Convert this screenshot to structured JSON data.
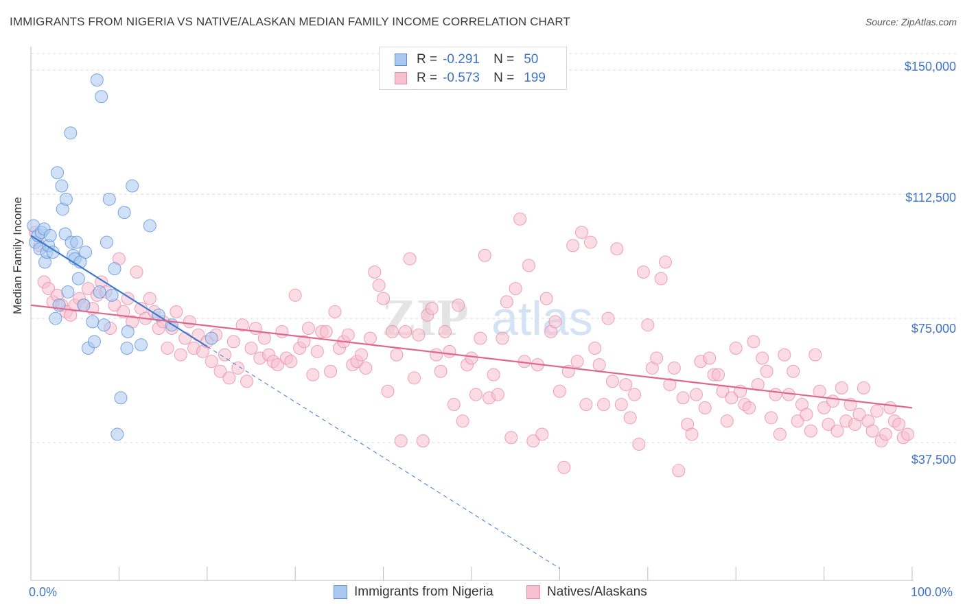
{
  "title": "IMMIGRANTS FROM NIGERIA VS NATIVE/ALASKAN MEDIAN FAMILY INCOME CORRELATION CHART",
  "source": "Source: ZipAtlas.com",
  "watermark": {
    "zip": "ZIP",
    "atlas": "atlas"
  },
  "stats": {
    "r_label": "R =",
    "n_label": "N =",
    "rows": [
      {
        "r": "-0.291",
        "n": "50",
        "color": "#a9c8f0",
        "border": "#5b8fd6"
      },
      {
        "r": "-0.573",
        "n": "199",
        "color": "#f7bfd0",
        "border": "#e88aa8"
      }
    ]
  },
  "legend": {
    "items": [
      {
        "label": "Immigrants from Nigeria",
        "color": "#a9c8f0",
        "border": "#5b8fd6"
      },
      {
        "label": "Natives/Alaskans",
        "color": "#f7bfd0",
        "border": "#e88aa8"
      }
    ]
  },
  "axes": {
    "ylabel": "Median Family Income",
    "x_left": "0.0%",
    "x_right": "100.0%",
    "y_ticks": [
      {
        "label": "$150,000",
        "value": 150000
      },
      {
        "label": "$112,500",
        "value": 112500
      },
      {
        "label": "$75,000",
        "value": 75000
      },
      {
        "label": "$37,500",
        "value": 37500
      }
    ]
  },
  "chart_data": {
    "type": "scatter",
    "xlim": [
      0,
      100
    ],
    "ylim": [
      0,
      155000
    ],
    "grid": "horizontal dashed",
    "series": [
      {
        "name": "Immigrants from Nigeria",
        "color": "#a9c8f0",
        "stroke": "#5b8fd6",
        "trend": {
          "x0": 0,
          "y0": 100000,
          "x1": 20,
          "y1": 66500,
          "extend_dashed_to_x": 60
        },
        "points": [
          [
            0.3,
            103000
          ],
          [
            0.5,
            98000
          ],
          [
            0.8,
            100000
          ],
          [
            1.0,
            96000
          ],
          [
            1.2,
            101000
          ],
          [
            1.5,
            102000
          ],
          [
            1.6,
            92000
          ],
          [
            1.8,
            95000
          ],
          [
            2.0,
            97000
          ],
          [
            2.2,
            100000
          ],
          [
            2.5,
            95000
          ],
          [
            2.8,
            75000
          ],
          [
            3.0,
            119000
          ],
          [
            3.2,
            79000
          ],
          [
            3.5,
            115000
          ],
          [
            3.6,
            108000
          ],
          [
            3.9,
            100500
          ],
          [
            4.0,
            111000
          ],
          [
            4.2,
            83000
          ],
          [
            4.5,
            131000
          ],
          [
            4.6,
            98000
          ],
          [
            4.8,
            94000
          ],
          [
            5.0,
            93000
          ],
          [
            5.2,
            98000
          ],
          [
            5.4,
            87000
          ],
          [
            5.6,
            92000
          ],
          [
            6.0,
            79000
          ],
          [
            6.2,
            95000
          ],
          [
            6.5,
            66000
          ],
          [
            7.0,
            74000
          ],
          [
            7.2,
            68000
          ],
          [
            7.5,
            147000
          ],
          [
            7.8,
            83000
          ],
          [
            8.0,
            142000
          ],
          [
            8.3,
            73000
          ],
          [
            8.6,
            98000
          ],
          [
            8.9,
            111000
          ],
          [
            9.2,
            82000
          ],
          [
            9.5,
            90000
          ],
          [
            9.8,
            40000
          ],
          [
            10.2,
            51000
          ],
          [
            10.6,
            107000
          ],
          [
            10.9,
            66000
          ],
          [
            11.0,
            71000
          ],
          [
            11.5,
            115000
          ],
          [
            12.5,
            67000
          ],
          [
            13.5,
            103000
          ],
          [
            14.5,
            76000
          ],
          [
            16.0,
            73000
          ],
          [
            20.5,
            69000
          ]
        ]
      },
      {
        "name": "Natives/Alaskans",
        "color": "#f7bfd0",
        "stroke": "#e88aa8",
        "trend": {
          "x0": 0,
          "y0": 79000,
          "x1": 100,
          "y1": 48000
        },
        "points": [
          [
            0.5,
            101000
          ],
          [
            1.0,
            97000
          ],
          [
            1.5,
            86000
          ],
          [
            2.0,
            84000
          ],
          [
            2.5,
            80000
          ],
          [
            3.0,
            82000
          ],
          [
            3.5,
            79000
          ],
          [
            4.0,
            77000
          ],
          [
            4.5,
            76000
          ],
          [
            5.0,
            79000
          ],
          [
            5.5,
            81000
          ],
          [
            6.0,
            79000
          ],
          [
            6.5,
            84000
          ],
          [
            7.0,
            78000
          ],
          [
            7.5,
            82000
          ],
          [
            8.0,
            86000
          ],
          [
            8.5,
            83000
          ],
          [
            9.0,
            72000
          ],
          [
            9.5,
            79000
          ],
          [
            10.0,
            93000
          ],
          [
            10.5,
            77000
          ],
          [
            11.0,
            81000
          ],
          [
            11.5,
            74000
          ],
          [
            12.0,
            89000
          ],
          [
            12.5,
            78000
          ],
          [
            13.0,
            75000
          ],
          [
            13.5,
            81000
          ],
          [
            14.0,
            77000
          ],
          [
            14.5,
            72000
          ],
          [
            15.0,
            74000
          ],
          [
            15.5,
            66000
          ],
          [
            16.0,
            72000
          ],
          [
            16.5,
            77000
          ],
          [
            17.0,
            64000
          ],
          [
            17.5,
            69000
          ],
          [
            18.0,
            74000
          ],
          [
            18.5,
            66000
          ],
          [
            19.0,
            70000
          ],
          [
            19.5,
            65000
          ],
          [
            20.0,
            68000
          ],
          [
            20.5,
            62000
          ],
          [
            21.0,
            70000
          ],
          [
            21.5,
            59000
          ],
          [
            22.0,
            64000
          ],
          [
            22.5,
            57000
          ],
          [
            23.0,
            68000
          ],
          [
            23.5,
            60000
          ],
          [
            24.0,
            73000
          ],
          [
            24.5,
            56000
          ],
          [
            25.0,
            66000
          ],
          [
            25.5,
            72000
          ],
          [
            26.0,
            63000
          ],
          [
            26.5,
            69000
          ],
          [
            27.0,
            64000
          ],
          [
            27.5,
            62000
          ],
          [
            28.0,
            61000
          ],
          [
            28.5,
            71000
          ],
          [
            29.0,
            63000
          ],
          [
            29.5,
            62000
          ],
          [
            30.0,
            82000
          ],
          [
            30.5,
            66000
          ],
          [
            31.0,
            68000
          ],
          [
            31.5,
            72000
          ],
          [
            32.0,
            58000
          ],
          [
            32.5,
            65000
          ],
          [
            33.0,
            71000
          ],
          [
            33.5,
            71000
          ],
          [
            34.0,
            59000
          ],
          [
            34.5,
            77000
          ],
          [
            35.0,
            66000
          ],
          [
            35.5,
            68000
          ],
          [
            36.0,
            70000
          ],
          [
            36.5,
            61000
          ],
          [
            37.0,
            62000
          ],
          [
            37.5,
            64000
          ],
          [
            38.0,
            60000
          ],
          [
            38.5,
            69000
          ],
          [
            39.0,
            89000
          ],
          [
            39.5,
            85000
          ],
          [
            40.0,
            81000
          ],
          [
            40.5,
            53000
          ],
          [
            41.0,
            71000
          ],
          [
            41.5,
            64000
          ],
          [
            42.0,
            38000
          ],
          [
            42.5,
            71000
          ],
          [
            43.0,
            93000
          ],
          [
            43.5,
            57000
          ],
          [
            44.0,
            70000
          ],
          [
            44.5,
            38000
          ],
          [
            45.0,
            76000
          ],
          [
            45.5,
            78000
          ],
          [
            46.0,
            64000
          ],
          [
            46.5,
            59000
          ],
          [
            47.0,
            71000
          ],
          [
            47.5,
            65000
          ],
          [
            48.0,
            49000
          ],
          [
            48.5,
            79000
          ],
          [
            49.0,
            44000
          ],
          [
            49.5,
            61000
          ],
          [
            50.0,
            63000
          ],
          [
            50.5,
            52000
          ],
          [
            51.0,
            69000
          ],
          [
            51.5,
            94000
          ],
          [
            52.0,
            51000
          ],
          [
            52.5,
            58000
          ],
          [
            53.0,
            52000
          ],
          [
            53.5,
            69000
          ],
          [
            54.0,
            80000
          ],
          [
            54.5,
            39000
          ],
          [
            55.0,
            84000
          ],
          [
            55.5,
            105000
          ],
          [
            56.0,
            62000
          ],
          [
            56.5,
            91000
          ],
          [
            57.0,
            38000
          ],
          [
            57.5,
            61000
          ],
          [
            58.0,
            40000
          ],
          [
            58.5,
            81000
          ],
          [
            59.0,
            71000
          ],
          [
            59.5,
            74000
          ],
          [
            60.0,
            53000
          ],
          [
            60.5,
            30000
          ],
          [
            61.0,
            59000
          ],
          [
            61.5,
            97000
          ],
          [
            62.0,
            62000
          ],
          [
            62.5,
            101000
          ],
          [
            63.0,
            49000
          ],
          [
            63.5,
            98000
          ],
          [
            64.0,
            66000
          ],
          [
            64.5,
            61000
          ],
          [
            65.0,
            49000
          ],
          [
            65.5,
            75000
          ],
          [
            66.0,
            56000
          ],
          [
            66.5,
            96000
          ],
          [
            67.0,
            49000
          ],
          [
            67.5,
            55000
          ],
          [
            68.0,
            45000
          ],
          [
            68.5,
            52000
          ],
          [
            69.0,
            37000
          ],
          [
            69.5,
            89000
          ],
          [
            70.0,
            73000
          ],
          [
            70.5,
            60000
          ],
          [
            71.0,
            63000
          ],
          [
            71.5,
            87000
          ],
          [
            72.0,
            92000
          ],
          [
            72.5,
            55000
          ],
          [
            73.0,
            60000
          ],
          [
            73.5,
            29000
          ],
          [
            74.0,
            51000
          ],
          [
            74.5,
            43000
          ],
          [
            75.0,
            40000
          ],
          [
            75.5,
            52000
          ],
          [
            76.0,
            62000
          ],
          [
            76.5,
            48000
          ],
          [
            77.0,
            63000
          ],
          [
            77.5,
            58000
          ],
          [
            78.0,
            58000
          ],
          [
            78.5,
            53000
          ],
          [
            79.0,
            44000
          ],
          [
            79.5,
            51000
          ],
          [
            80.0,
            66000
          ],
          [
            80.5,
            53000
          ],
          [
            81.0,
            49000
          ],
          [
            81.5,
            48000
          ],
          [
            82.0,
            68000
          ],
          [
            82.5,
            55000
          ],
          [
            83.0,
            63000
          ],
          [
            83.5,
            59000
          ],
          [
            84.0,
            45000
          ],
          [
            84.5,
            52000
          ],
          [
            85.0,
            40000
          ],
          [
            85.5,
            64000
          ],
          [
            86.0,
            52000
          ],
          [
            86.5,
            59000
          ],
          [
            87.0,
            44000
          ],
          [
            87.5,
            49000
          ],
          [
            88.0,
            46000
          ],
          [
            88.5,
            41000
          ],
          [
            89.0,
            64000
          ],
          [
            89.5,
            53000
          ],
          [
            90.0,
            48000
          ],
          [
            90.5,
            43000
          ],
          [
            91.0,
            50000
          ],
          [
            91.5,
            41000
          ],
          [
            92.0,
            54000
          ],
          [
            92.5,
            44000
          ],
          [
            93.0,
            49000
          ],
          [
            93.5,
            43000
          ],
          [
            94.0,
            46000
          ],
          [
            94.5,
            54000
          ],
          [
            95.0,
            44000
          ],
          [
            95.5,
            41000
          ],
          [
            96.0,
            47000
          ],
          [
            96.5,
            38000
          ],
          [
            97.0,
            40000
          ],
          [
            97.5,
            48000
          ],
          [
            98.0,
            44000
          ],
          [
            98.5,
            43000
          ],
          [
            99.0,
            39000
          ],
          [
            99.5,
            40000
          ]
        ]
      }
    ]
  }
}
